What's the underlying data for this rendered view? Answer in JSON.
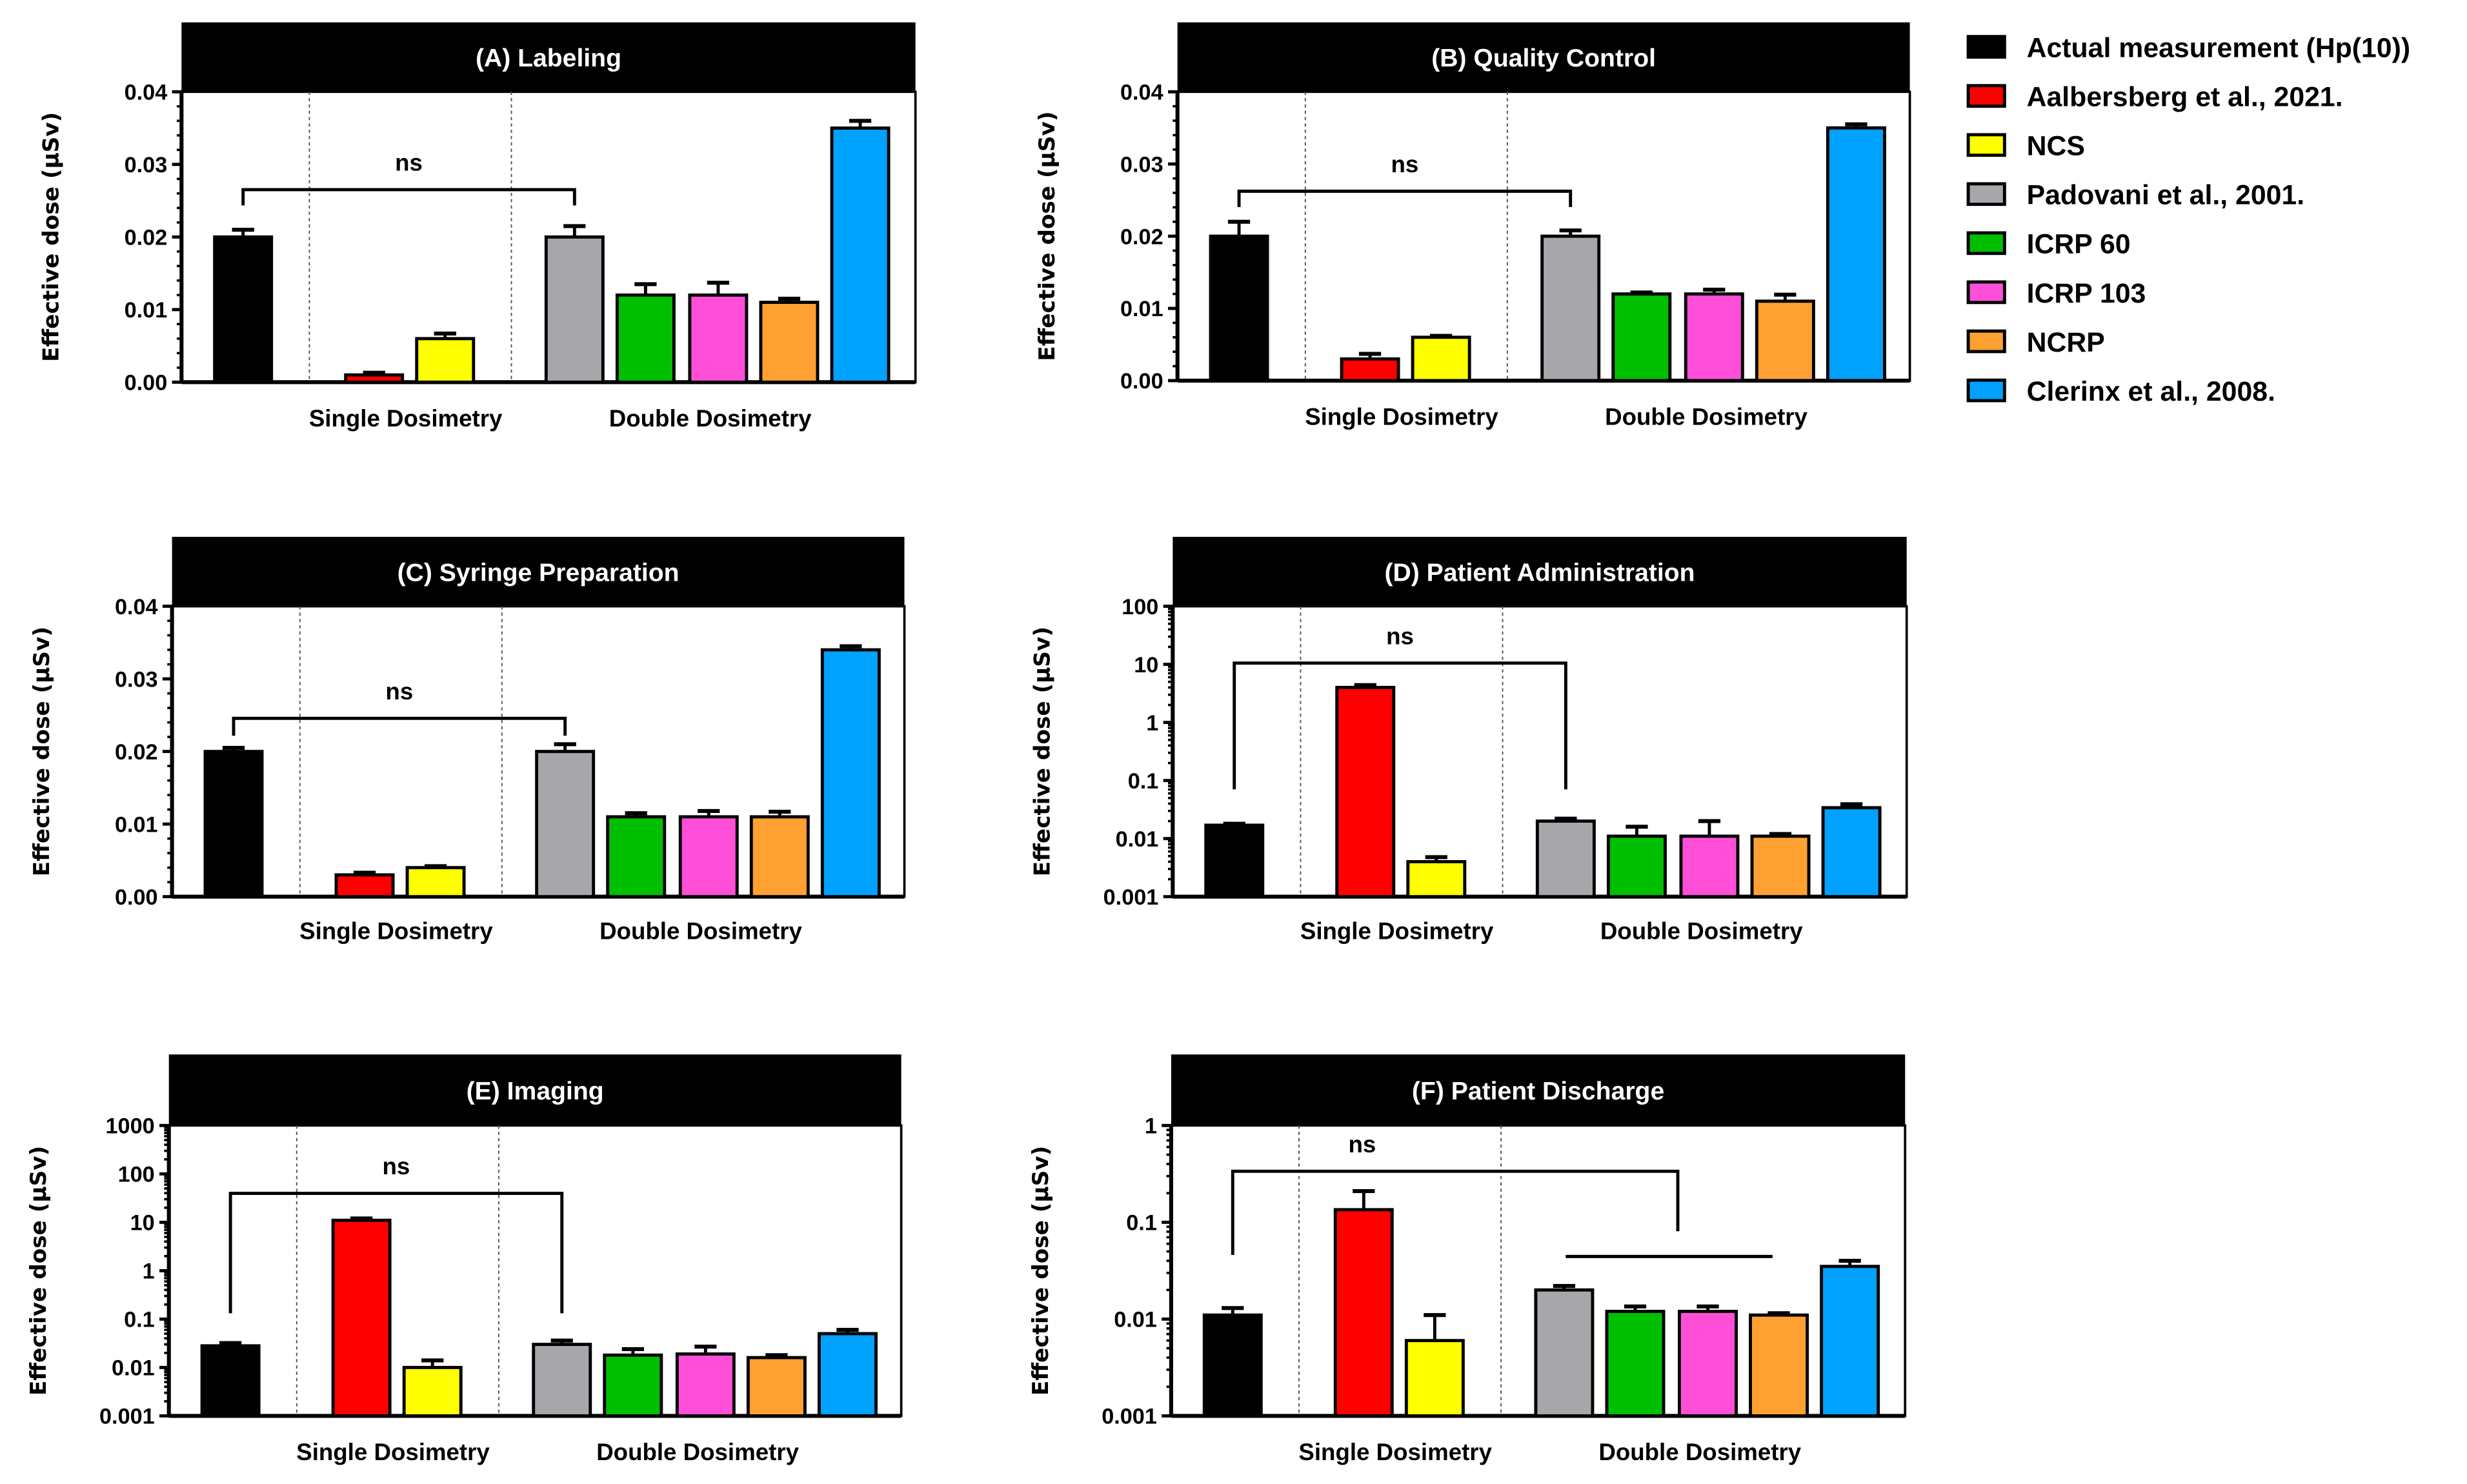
{
  "chart_data": {
    "type": "bar",
    "legend": {
      "placement": "right",
      "entries": [
        {
          "name": "Actual measurement (Hp(10))",
          "color": "#000000"
        },
        {
          "name": "Aalbersberg et al., 2021.",
          "color": "#ff0000"
        },
        {
          "name": "NCS",
          "color": "#ffff00"
        },
        {
          "name": "Padovani et al., 2001.",
          "color": "#a7a7ab"
        },
        {
          "name": "ICRP 60",
          "color": "#00bf00"
        },
        {
          "name": "ICRP 103",
          "color": "#ff4fd9"
        },
        {
          "name": "NCRP",
          "color": "#ffa033"
        },
        {
          "name": "Clerinx et al., 2008.",
          "color": "#00a2ff"
        }
      ]
    },
    "panels": [
      {
        "title": "(A) Labeling",
        "ylabel": "Effective dose (μSv)",
        "scale": "linear",
        "ylim": [
          0,
          0.04
        ],
        "yticks": [
          "0.00",
          "0.01",
          "0.02",
          "0.03",
          "0.04"
        ],
        "ytick_values": [
          0,
          0.01,
          0.02,
          0.03,
          0.04
        ],
        "groups": [
          "Single Dosimetry",
          "Double Dosimetry"
        ],
        "values": [
          0.02,
          0.001,
          0.006,
          0.02,
          0.012,
          0.012,
          0.011,
          0.035
        ],
        "error_upper": [
          0.021,
          0.0013,
          0.0067,
          0.0215,
          0.0135,
          0.0137,
          0.0115,
          0.036
        ],
        "annotation": {
          "text": "ns",
          "from": 0,
          "to": 3
        }
      },
      {
        "title": "(B) Quality Control",
        "ylabel": "Effective dose (μSv)",
        "scale": "linear",
        "ylim": [
          0,
          0.04
        ],
        "yticks": [
          "0.00",
          "0.01",
          "0.02",
          "0.03",
          "0.04"
        ],
        "ytick_values": [
          0,
          0.01,
          0.02,
          0.03,
          0.04
        ],
        "groups": [
          "Single Dosimetry",
          "Double Dosimetry"
        ],
        "values": [
          0.02,
          0.003,
          0.006,
          0.02,
          0.012,
          0.012,
          0.011,
          0.035
        ],
        "error_upper": [
          0.022,
          0.0037,
          0.0062,
          0.0208,
          0.0122,
          0.0126,
          0.0119,
          0.0355
        ],
        "annotation": {
          "text": "ns",
          "from": 0,
          "to": 3
        }
      },
      {
        "title": "(C) Syringe Preparation",
        "ylabel": "Effective dose (μSv)",
        "scale": "linear",
        "ylim": [
          0,
          0.04
        ],
        "yticks": [
          "0.00",
          "0.01",
          "0.02",
          "0.03",
          "0.04"
        ],
        "ytick_values": [
          0,
          0.01,
          0.02,
          0.03,
          0.04
        ],
        "groups": [
          "Single Dosimetry",
          "Double Dosimetry"
        ],
        "values": [
          0.02,
          0.003,
          0.004,
          0.02,
          0.011,
          0.011,
          0.011,
          0.034
        ],
        "error_upper": [
          0.0205,
          0.0033,
          0.0042,
          0.021,
          0.0115,
          0.0118,
          0.0117,
          0.0345
        ],
        "annotation": {
          "text": "ns",
          "from": 0,
          "to": 3
        }
      },
      {
        "title": "(D) Patient Administration",
        "ylabel": "Effective dose (μSv)",
        "scale": "log",
        "ylim": [
          0.001,
          100
        ],
        "yticks": [
          "0.001",
          "0.01",
          "0.1",
          "1",
          "10",
          "100"
        ],
        "ytick_values": [
          0.001,
          0.01,
          0.1,
          1,
          10,
          100
        ],
        "groups": [
          "Single Dosimetry",
          "Double Dosimetry"
        ],
        "values": [
          0.017,
          4,
          0.004,
          0.02,
          0.011,
          0.011,
          0.011,
          0.034
        ],
        "error_upper": [
          0.018,
          4.4,
          0.0048,
          0.022,
          0.016,
          0.02,
          0.012,
          0.039
        ],
        "annotation": {
          "text": "ns",
          "from": 0,
          "to": 3
        }
      },
      {
        "title": "(E) Imaging",
        "ylabel": "Effective dose (μSv)",
        "scale": "log",
        "ylim": [
          0.001,
          1000
        ],
        "yticks": [
          "0.001",
          "0.01",
          "0.1",
          "1",
          "10",
          "100",
          "1000"
        ],
        "ytick_values": [
          0.001,
          0.01,
          0.1,
          1,
          10,
          100,
          1000
        ],
        "groups": [
          "Single Dosimetry",
          "Double Dosimetry"
        ],
        "values": [
          0.028,
          11,
          0.01,
          0.03,
          0.018,
          0.019,
          0.016,
          0.05
        ],
        "error_upper": [
          0.032,
          12,
          0.014,
          0.036,
          0.024,
          0.027,
          0.018,
          0.06
        ],
        "annotation": {
          "text": "ns",
          "from": 0,
          "to": 3
        }
      },
      {
        "title": "(F) Patient Discharge",
        "ylabel": "Effective dose (μSv)",
        "scale": "log",
        "ylim": [
          0.001,
          1
        ],
        "yticks": [
          "0.001",
          "0.01",
          "0.1",
          "1"
        ],
        "ytick_values": [
          0.001,
          0.01,
          0.1,
          1
        ],
        "groups": [
          "Single Dosimetry",
          "Double Dosimetry"
        ],
        "values": [
          0.011,
          0.135,
          0.006,
          0.02,
          0.012,
          0.012,
          0.011,
          0.035
        ],
        "error_upper": [
          0.013,
          0.21,
          0.011,
          0.022,
          0.0135,
          0.0135,
          0.0115,
          0.04
        ],
        "annotation": {
          "text": "ns",
          "from": 0,
          "to": "3-6"
        }
      }
    ]
  }
}
